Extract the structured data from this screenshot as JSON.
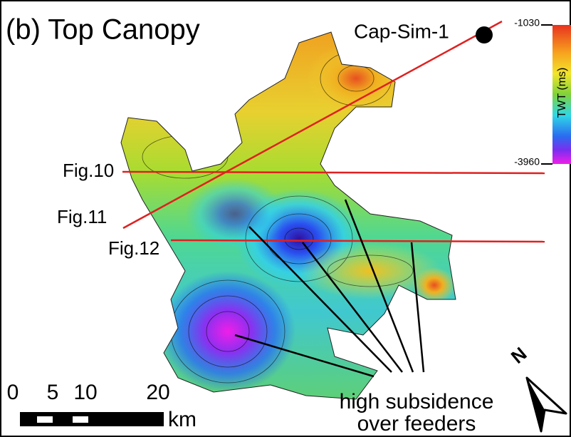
{
  "title": "(b) Top Canopy",
  "well": "Cap-Sim-1",
  "colorbar": {
    "top": "-1030",
    "bottom": "-3960",
    "label": "TWT (ms)"
  },
  "sections": [
    "Fig.10",
    "Fig.11",
    "Fig.12"
  ],
  "scale_bar": {
    "ticks": [
      "0",
      "5",
      "10",
      "20"
    ],
    "unit": "km"
  },
  "annotation": [
    "high subsidence",
    "over feeders"
  ],
  "north": "N"
}
